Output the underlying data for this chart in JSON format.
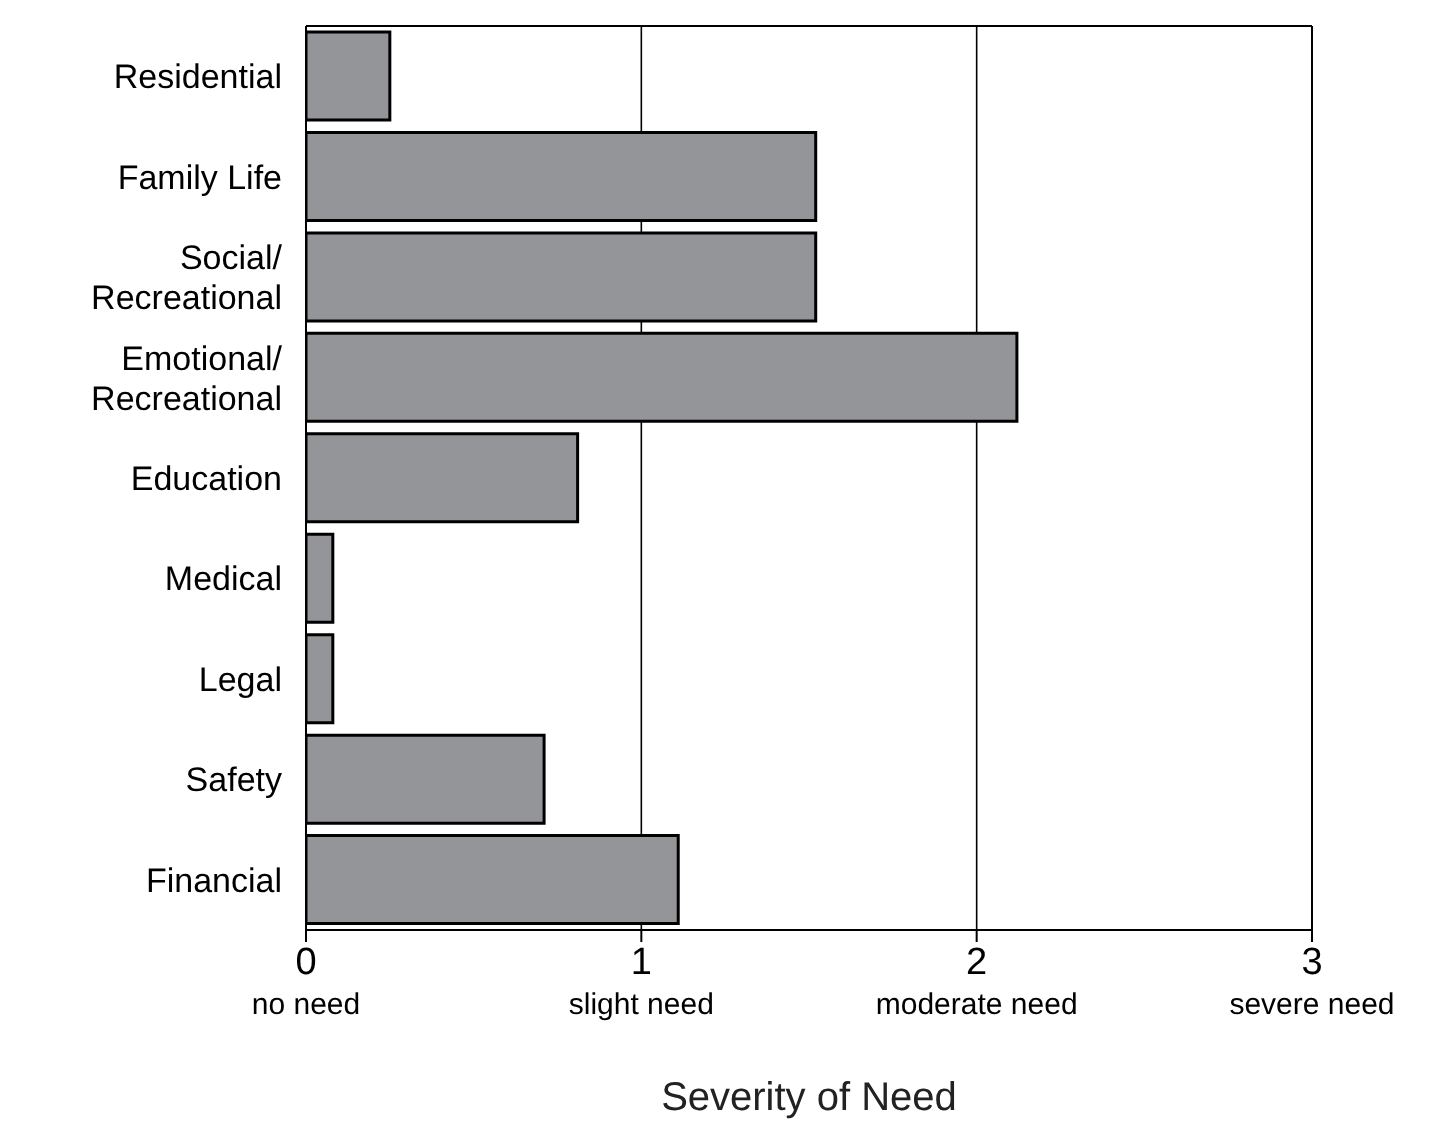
{
  "chart_data": {
    "type": "bar",
    "orientation": "horizontal",
    "xlabel": "Severity of Need",
    "categories": [
      "Residential",
      "Family Life",
      "Social/Recreational",
      "Emotional/Recreational",
      "Education",
      "Medical",
      "Legal",
      "Safety",
      "Financial"
    ],
    "values": [
      0.25,
      1.52,
      1.52,
      2.12,
      0.81,
      0.08,
      0.08,
      0.71,
      1.11
    ],
    "color": "#939598",
    "xlim": [
      0,
      3
    ],
    "xticks": [
      {
        "value": 0,
        "label": "0\nno need"
      },
      {
        "value": 1,
        "label": "1\nslight need"
      },
      {
        "value": 2,
        "label": "2\nmoderate need"
      },
      {
        "value": 3,
        "label": "3\nsevere need"
      }
    ],
    "grid": "x"
  }
}
